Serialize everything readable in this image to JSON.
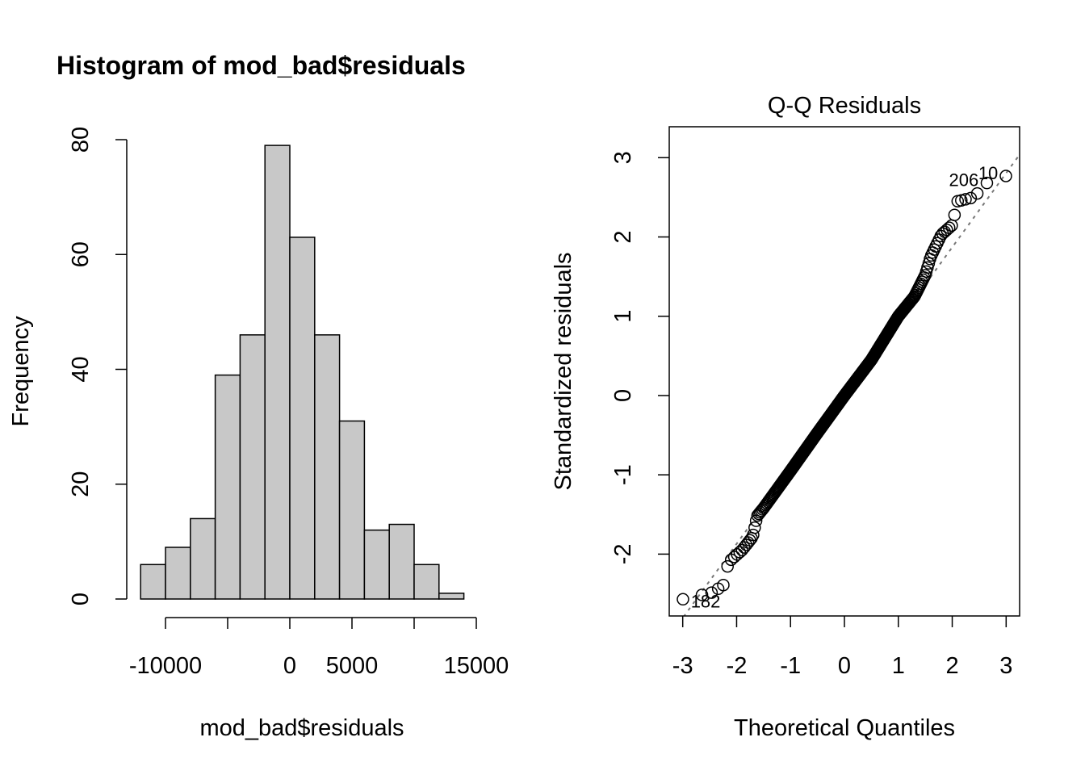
{
  "chart_data": [
    {
      "type": "bar",
      "title": "Histogram of mod_bad$residuals",
      "xlabel": "mod_bad$residuals",
      "ylabel": "Frequency",
      "bin_edges": [
        -12000,
        -10000,
        -8000,
        -6000,
        -4000,
        -2000,
        0,
        2000,
        4000,
        6000,
        8000,
        10000,
        12000,
        14000
      ],
      "values": [
        6,
        9,
        14,
        39,
        46,
        79,
        63,
        46,
        31,
        12,
        13,
        6,
        1
      ],
      "xlim": [
        -14000,
        16000
      ],
      "ylim": [
        0,
        80
      ],
      "x_ticks": [
        -10000,
        -5000,
        0,
        5000,
        10000,
        15000
      ],
      "x_tick_labels": [
        "-10000",
        "",
        "0",
        "5000",
        "",
        "15000"
      ],
      "y_ticks": [
        0,
        20,
        40,
        60,
        80
      ],
      "y_tick_labels": [
        "0",
        "20",
        "40",
        "60",
        "80"
      ],
      "bar_color": "#c8c8c8"
    },
    {
      "type": "scatter",
      "title": "Q-Q Residuals",
      "xlabel": "Theoretical Quantiles",
      "ylabel": "Standardized residuals",
      "n": 365,
      "curve_anchors": [
        [
          -3,
          -2.57
        ],
        [
          -2.7,
          -2.52
        ],
        [
          -2.5,
          -2.5
        ],
        [
          -2.25,
          -2.4
        ],
        [
          -2.15,
          -2.1
        ],
        [
          -1.9,
          -1.95
        ],
        [
          -1.7,
          -1.78
        ],
        [
          -1.62,
          -1.52
        ],
        [
          -1.5,
          -1.42
        ],
        [
          -1,
          -0.95
        ],
        [
          -0.5,
          -0.47
        ],
        [
          0,
          0
        ],
        [
          0.5,
          0.45
        ],
        [
          1,
          1.0
        ],
        [
          1.3,
          1.25
        ],
        [
          1.5,
          1.52
        ],
        [
          1.6,
          1.75
        ],
        [
          1.8,
          2.03
        ],
        [
          2.0,
          2.15
        ],
        [
          2.1,
          2.45
        ],
        [
          2.4,
          2.5
        ],
        [
          2.64,
          2.68
        ],
        [
          3,
          2.77
        ]
      ],
      "reference_line": {
        "intercept": 0.0,
        "slope": 0.935
      },
      "point_labels": [
        {
          "label": "10",
          "x": 3.0,
          "y": 2.77
        },
        {
          "label": "206",
          "x": 2.64,
          "y": 2.68
        },
        {
          "label": "182",
          "x": -3.0,
          "y": -2.57
        }
      ],
      "xlim": [
        -3.25,
        3.25
      ],
      "ylim": [
        -2.78,
        3.39
      ],
      "x_ticks": [
        -3,
        -2,
        -1,
        0,
        1,
        2,
        3
      ],
      "x_tick_labels": [
        "-3",
        "-2",
        "-1",
        "0",
        "1",
        "2",
        "3"
      ],
      "y_ticks": [
        -2,
        -1,
        0,
        1,
        2,
        3
      ],
      "y_tick_labels": [
        "-2",
        "-1",
        "0",
        "1",
        "2",
        "3"
      ]
    }
  ]
}
